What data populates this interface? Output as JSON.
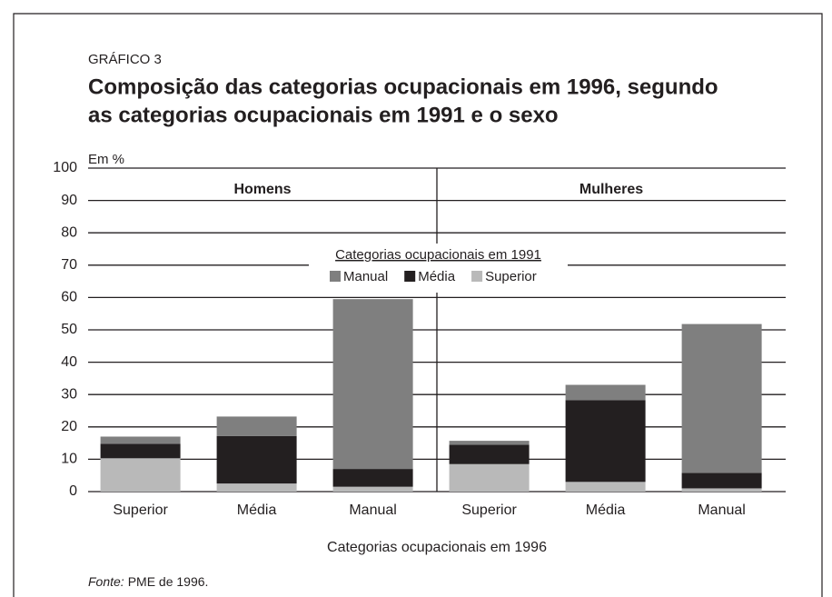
{
  "chart_data": {
    "type": "stacked_bar",
    "kicker": "GRÁFICO 3",
    "title": [
      "Composição das categorias ocupacionais em 1996, segundo",
      "as categorias ocupacionais em 1991 e o sexo"
    ],
    "y_label": "Em %",
    "x_label": "Categorias ocupacionais em 1996",
    "ylim": [
      0,
      100
    ],
    "yticks": [
      0,
      10,
      20,
      30,
      40,
      50,
      60,
      70,
      80,
      90,
      100
    ],
    "legend": {
      "title": "Categorias ocupacionais em 1991",
      "position": "center"
    },
    "series": [
      {
        "name": "Manual",
        "color": "#7f7f7f"
      },
      {
        "name": "Média",
        "color": "#231f20"
      },
      {
        "name": "Superior",
        "color": "#b9b9b9"
      }
    ],
    "panels": [
      {
        "title": "Homens",
        "categories": [
          "Superior",
          "Média",
          "Manual"
        ],
        "values": [
          [
            2.2,
            6,
            52.5
          ],
          [
            4.5,
            14.7,
            5.5
          ],
          [
            10.3,
            2.5,
            1.5
          ]
        ]
      },
      {
        "title": "Mulheres",
        "categories": [
          "Superior",
          "Média",
          "Manual"
        ],
        "values": [
          [
            1.2,
            4.7,
            46
          ],
          [
            6,
            25.3,
            4.8
          ],
          [
            8.5,
            3,
            1
          ]
        ]
      }
    ],
    "source": {
      "label": "Fonte:",
      "text": "PME de 1996."
    }
  }
}
